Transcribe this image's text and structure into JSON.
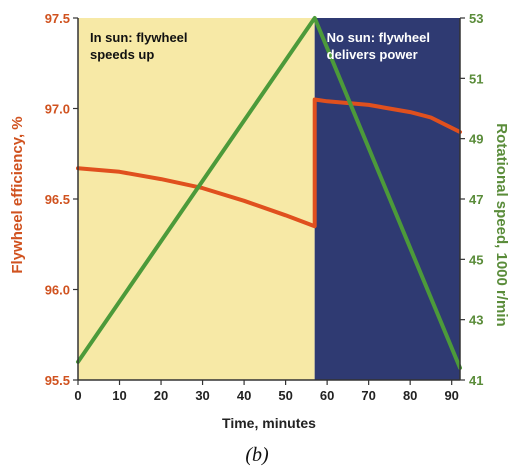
{
  "chart_data": {
    "type": "line",
    "xlabel": "Time, minutes",
    "ylabel_left": "Flywheel efficiency, %",
    "ylabel_right": "Rotational speed, 1000 r/min",
    "caption": "(b)",
    "xlim": [
      0,
      92
    ],
    "ylim_left": [
      95.5,
      97.5
    ],
    "ylim_right": [
      41,
      53
    ],
    "x_ticks": [
      0,
      10,
      20,
      30,
      40,
      50,
      60,
      70,
      80,
      90
    ],
    "y_left_ticks": [
      "95.5",
      "96.0",
      "96.5",
      "97.0",
      "97.5"
    ],
    "y_right_ticks": [
      "41",
      "43",
      "45",
      "47",
      "49",
      "51",
      "53"
    ],
    "regions": [
      {
        "label_lines": [
          "In sun: flywheel",
          "speeds up"
        ],
        "x_start": 0,
        "x_end": 57,
        "color": "#f7e9a6"
      },
      {
        "label_lines": [
          "No sun: flywheel",
          "delivers power"
        ],
        "x_start": 57,
        "x_end": 92,
        "color": "#2f3a72"
      }
    ],
    "series": [
      {
        "axis": "left",
        "color": "#e0501e",
        "x": [
          0,
          10,
          20,
          30,
          40,
          50,
          57,
          57,
          60,
          70,
          80,
          85,
          92
        ],
        "y": [
          96.67,
          96.65,
          96.61,
          96.56,
          96.49,
          96.41,
          96.35,
          97.05,
          97.04,
          97.02,
          96.98,
          96.95,
          96.87
        ]
      },
      {
        "axis": "right",
        "color": "#4c9a3a",
        "x": [
          0,
          57,
          92
        ],
        "y": [
          41.6,
          53.0,
          41.4
        ]
      }
    ]
  }
}
